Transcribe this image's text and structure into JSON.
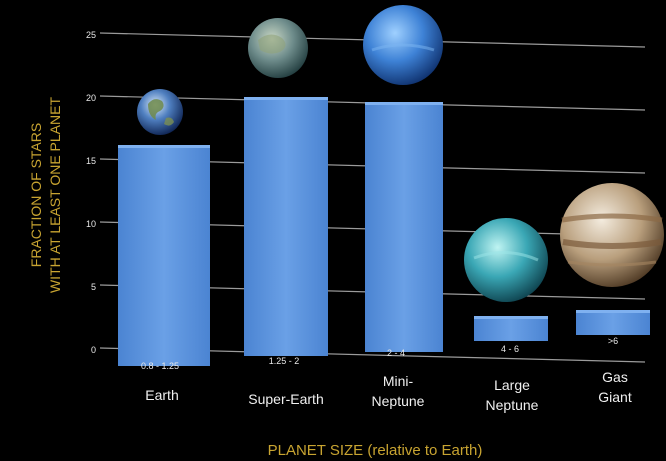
{
  "chart_data": {
    "type": "bar",
    "ylabel_lines": [
      "FRACTION OF STARS",
      "WITH AT LEAST ONE PLANET"
    ],
    "xlabel": "PLANET SIZE (relative to Earth)",
    "ylim": [
      0,
      35
    ],
    "yticks": [
      "0",
      "5",
      "10",
      "15",
      "20",
      "25"
    ],
    "grid": true,
    "categories": [
      {
        "name_lines": [
          "Earth"
        ],
        "range": "0.8 - 1.25",
        "value": 17
      },
      {
        "name_lines": [
          "Super-Earth"
        ],
        "range": "1.25 - 2",
        "value": 20.5
      },
      {
        "name_lines": [
          "Mini-",
          "Neptune"
        ],
        "range": "2 - 4",
        "value": 20
      },
      {
        "name_lines": [
          "Large",
          "Neptune"
        ],
        "range": "4 - 6",
        "value": 1
      },
      {
        "name_lines": [
          "Gas",
          "Giant"
        ],
        "range": ">6",
        "value": 1
      }
    ],
    "colors": {
      "bar": "#5b93de",
      "bar_top": "#7fb1f0",
      "bar_side": "#3f72b6",
      "grid": "#cfcfcf",
      "axis_title": "#c8a431",
      "background": "#000000"
    },
    "planet_icons": [
      "earth-icon",
      "super-earth-icon",
      "mini-neptune-icon",
      "large-neptune-icon",
      "gas-giant-icon"
    ]
  }
}
